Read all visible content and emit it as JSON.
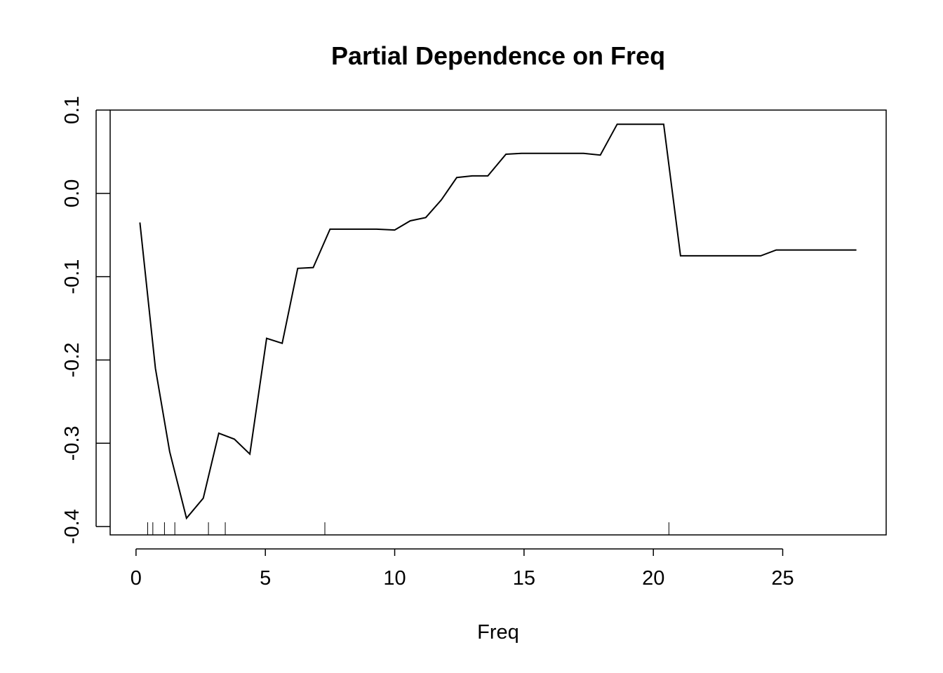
{
  "chart_data": {
    "type": "line",
    "title": "Partial Dependence on Freq",
    "xlabel": "Freq",
    "ylabel": "",
    "xlim": [
      -1,
      29
    ],
    "ylim": [
      -0.41,
      0.1
    ],
    "x_ticks": [
      0,
      5,
      10,
      15,
      20,
      25
    ],
    "x_tick_labels": [
      "0",
      "5",
      "10",
      "15",
      "20",
      "25"
    ],
    "y_ticks": [
      -0.4,
      -0.3,
      -0.2,
      -0.1,
      0.0,
      0.1
    ],
    "y_tick_labels": [
      "-0.4",
      "-0.3",
      "-0.2",
      "-0.1",
      "0.0",
      "0.1"
    ],
    "grid": false,
    "legend": "none",
    "series": [
      {
        "x": [
          0.15,
          0.75,
          1.3,
          1.95,
          2.6,
          3.2,
          3.8,
          4.4,
          5.05,
          5.65,
          6.25,
          6.85,
          7.5,
          8.1,
          8.7,
          9.3,
          10.0,
          10.6,
          11.2,
          11.8,
          12.4,
          13.0,
          13.6,
          14.3,
          14.9,
          15.5,
          16.1,
          16.7,
          17.3,
          17.95,
          18.6,
          19.2,
          19.8,
          20.4,
          21.05,
          21.7,
          22.3,
          22.9,
          23.5,
          24.15,
          24.75,
          25.4,
          26.0,
          26.6,
          27.2,
          27.85
        ],
        "y": [
          -0.035,
          -0.21,
          -0.31,
          -0.39,
          -0.366,
          -0.288,
          -0.295,
          -0.313,
          -0.174,
          -0.18,
          -0.09,
          -0.089,
          -0.043,
          -0.043,
          -0.043,
          -0.043,
          -0.044,
          -0.033,
          -0.029,
          -0.008,
          0.019,
          0.021,
          0.021,
          0.047,
          0.048,
          0.048,
          0.048,
          0.048,
          0.048,
          0.046,
          0.083,
          0.083,
          0.083,
          0.083,
          -0.075,
          -0.075,
          -0.075,
          -0.075,
          -0.075,
          -0.075,
          -0.068,
          -0.068,
          -0.068,
          -0.068,
          -0.068,
          -0.068
        ]
      }
    ],
    "rug": [
      0.45,
      0.65,
      1.1,
      1.5,
      2.8,
      3.45,
      7.3,
      20.6
    ]
  }
}
